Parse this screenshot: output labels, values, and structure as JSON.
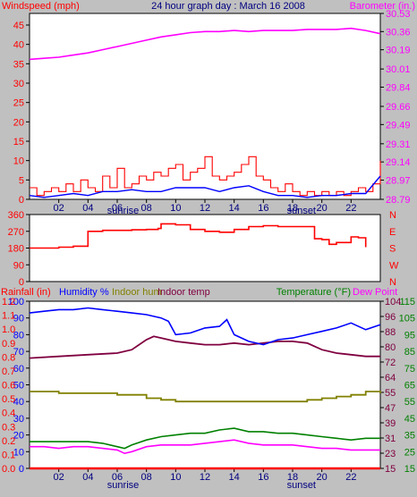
{
  "title": "24 hour graph day : March 16 2008",
  "colors": {
    "background": "#c0c0c0",
    "plot_background": "#ffffff",
    "frame": "#000000",
    "wind_speed": "#ff0000",
    "wind_gust": "#0000ff",
    "barometer": "#ff00ff",
    "wind_direction": "#ff0000",
    "rainfall": "#ff0000",
    "humidity": "#0000ff",
    "indoor_humidity": "#808000",
    "indoor_temp": "#800040",
    "temperature": "#008000",
    "dew_point": "#ff00ff"
  },
  "chart_data": [
    {
      "id": "wind-barometer",
      "type": "line",
      "labels": {
        "left": "Windspeed (mph)",
        "right": "Barometer (in.)"
      },
      "x_ticks": [
        "02",
        "04",
        "06",
        "08",
        "10",
        "12",
        "14",
        "16",
        "18",
        "20",
        "22"
      ],
      "x_markers": {
        "sunrise": "sunrise",
        "sunset": "sunset"
      },
      "x_range": [
        0,
        24
      ],
      "left_ticks": [
        "0",
        "5",
        "10",
        "15",
        "20",
        "25",
        "30",
        "35",
        "40",
        "45"
      ],
      "right_ticks": [
        "28.79",
        "28.97",
        "29.14",
        "29.31",
        "29.49",
        "29.66",
        "29.84",
        "30.01",
        "30.19",
        "30.36",
        "30.53"
      ],
      "left_range": [
        0,
        48
      ],
      "right_range": [
        28.79,
        30.53
      ],
      "barometer": {
        "x": [
          0,
          1,
          2,
          3,
          4,
          5,
          6,
          7,
          8,
          9,
          10,
          11,
          12,
          13,
          14,
          15,
          16,
          17,
          18,
          19,
          20,
          21,
          22,
          23,
          24
        ],
        "y": [
          30.1,
          30.11,
          30.12,
          30.14,
          30.16,
          30.19,
          30.22,
          30.25,
          30.28,
          30.31,
          30.33,
          30.35,
          30.36,
          30.36,
          30.37,
          30.36,
          30.37,
          30.37,
          30.37,
          30.38,
          30.38,
          30.38,
          30.39,
          30.37,
          30.34
        ]
      },
      "wind_speed": {
        "x": [
          0,
          0.5,
          1,
          1.5,
          2,
          2.5,
          3,
          3.5,
          4,
          4.5,
          5,
          5.5,
          6,
          6.5,
          7,
          7.5,
          8,
          8.5,
          9,
          9.5,
          10,
          10.5,
          11,
          11.5,
          12,
          12.5,
          13,
          13.5,
          14,
          14.5,
          15,
          15.5,
          16,
          16.5,
          17,
          17.5,
          18,
          18.5,
          19,
          19.5,
          20,
          20.5,
          21,
          21.5,
          22,
          22.5,
          23,
          23.5,
          24
        ],
        "y": [
          3,
          1,
          2,
          3,
          2,
          4,
          2,
          5,
          3,
          2,
          6,
          3,
          8,
          3,
          4,
          6,
          5,
          7,
          6,
          8,
          9,
          5,
          7,
          8,
          11,
          6,
          5,
          6,
          7,
          9,
          11,
          6,
          5,
          3,
          2,
          4,
          2,
          1,
          2,
          1,
          2,
          1,
          2,
          1,
          2,
          3,
          2,
          4,
          10
        ]
      },
      "wind_gust": {
        "x": [
          0,
          1,
          2,
          3,
          4,
          5,
          6,
          7,
          8,
          9,
          10,
          11,
          12,
          13,
          14,
          15,
          16,
          17,
          18,
          19,
          20,
          21,
          22,
          23,
          24
        ],
        "y": [
          1,
          0.5,
          1,
          1.5,
          1,
          2,
          2,
          2.5,
          2,
          2,
          3,
          3,
          3,
          2,
          3,
          3.5,
          2,
          1,
          1,
          0.5,
          1,
          1,
          1.5,
          1.5,
          6
        ]
      }
    },
    {
      "id": "wind-direction",
      "type": "line",
      "x_range": [
        0,
        24
      ],
      "left_ticks": [
        "0",
        "90",
        "180",
        "270",
        "360"
      ],
      "right_ticks": [
        "N",
        "E",
        "S",
        "W",
        "N"
      ],
      "left_range": [
        0,
        360
      ],
      "direction": {
        "x": [
          0,
          1,
          2,
          3,
          3.8,
          4,
          5,
          6,
          7,
          8,
          8.8,
          9,
          10,
          11,
          12,
          13,
          14,
          15,
          16,
          17,
          18,
          19,
          19.5,
          20,
          20.5,
          21,
          22,
          22.5,
          23
        ],
        "y": [
          180,
          180,
          185,
          190,
          190,
          270,
          275,
          275,
          278,
          280,
          285,
          310,
          305,
          280,
          270,
          265,
          280,
          295,
          300,
          295,
          295,
          295,
          230,
          225,
          200,
          210,
          240,
          235,
          185
        ]
      }
    },
    {
      "id": "environment",
      "type": "line",
      "labels": {
        "rainfall": "Rainfall (in)",
        "humidity": "Humidity %",
        "indoor_humidity": "Indoor hum",
        "indoor_temp": "Indoor temp",
        "temperature": "Temperature (°F)",
        "dew_point": "Dew Point"
      },
      "x_ticks": [
        "02",
        "04",
        "06",
        "08",
        "10",
        "12",
        "14",
        "16",
        "18",
        "20",
        "22"
      ],
      "x_markers": {
        "sunrise": "sunrise",
        "sunset": "sunset"
      },
      "x_range": [
        0,
        24
      ],
      "rain_ticks": [
        "0.0",
        "0.1",
        "0.2",
        "0.3",
        "0.4",
        "0.5",
        "0.6",
        "0.7",
        "0.8",
        "0.9",
        "1.0",
        "1.1",
        "1.2"
      ],
      "humidity_ticks": [
        "0",
        "10",
        "20",
        "30",
        "40",
        "50",
        "60",
        "70",
        "80",
        "90",
        "100"
      ],
      "indoor_temp_ticks": [
        "15",
        "23",
        "31",
        "39",
        "47",
        "55",
        "64",
        "72",
        "80",
        "88",
        "96",
        "104"
      ],
      "temp_ticks": [
        "15",
        "25",
        "35",
        "45",
        "55",
        "65",
        "75",
        "85",
        "95",
        "105",
        "115"
      ],
      "humidity_range": [
        0,
        100
      ],
      "rainfall": {
        "x": [
          0,
          24
        ],
        "y": [
          0,
          0
        ]
      },
      "humidity": {
        "x": [
          0,
          1,
          2,
          3,
          4,
          5,
          6,
          7,
          8,
          9,
          9.5,
          10,
          11,
          12,
          13,
          13.5,
          14,
          15,
          16,
          17,
          18,
          19,
          20,
          21,
          22,
          23,
          24
        ],
        "y": [
          93,
          94,
          95,
          95,
          96,
          95,
          94,
          93,
          92,
          90,
          88,
          80,
          81,
          84,
          85,
          89,
          80,
          76,
          74,
          77,
          78,
          80,
          82,
          84,
          87,
          83,
          86
        ]
      },
      "indoor_temp": {
        "x": [
          0,
          2,
          4,
          6,
          7,
          8,
          8.5,
          9,
          10,
          11,
          12,
          13,
          14,
          15,
          16,
          17,
          18,
          19,
          20,
          21,
          22,
          23,
          24
        ],
        "y": [
          66,
          67,
          68,
          69,
          71,
          77,
          79,
          78,
          76,
          75,
          74,
          74,
          75,
          74,
          75,
          76,
          76,
          75,
          71,
          69,
          68,
          67,
          67
        ]
      },
      "indoor_humidity": {
        "x": [
          0,
          2,
          4,
          6,
          8,
          9,
          10,
          12,
          14,
          16,
          18,
          19,
          20,
          21,
          22,
          23,
          24
        ],
        "y": [
          46,
          45,
          45,
          44,
          42,
          41,
          40,
          40,
          40,
          40,
          40,
          41,
          42,
          43,
          44,
          46,
          45
        ]
      },
      "temperature": {
        "x": [
          0,
          1,
          2,
          3,
          4,
          5,
          6,
          6.5,
          7,
          8,
          9,
          10,
          11,
          12,
          13,
          14,
          15,
          16,
          17,
          18,
          19,
          20,
          21,
          22,
          23,
          24
        ],
        "y": [
          16,
          16,
          16,
          16,
          16,
          15,
          13,
          12,
          14,
          17,
          19,
          20,
          21,
          21,
          23,
          24,
          22,
          22,
          21,
          21,
          20,
          19,
          18,
          17,
          18,
          18
        ]
      },
      "dew_point": {
        "x": [
          0,
          1,
          2,
          3,
          4,
          5,
          6,
          6.5,
          7,
          8,
          9,
          10,
          11,
          12,
          13,
          14,
          15,
          16,
          17,
          18,
          19,
          20,
          21,
          22,
          23,
          24
        ],
        "y": [
          13,
          13,
          12,
          13,
          13,
          12,
          11,
          9,
          10,
          13,
          14,
          14,
          14,
          15,
          16,
          17,
          15,
          14,
          14,
          14,
          13,
          12,
          12,
          11,
          11,
          11
        ]
      }
    }
  ]
}
